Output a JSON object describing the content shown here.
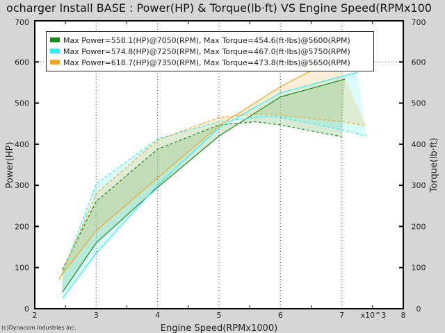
{
  "chart_data": {
    "type": "line",
    "title": "ocharger Install BASE : Power(HP) & Torque(lb·ft) VS Engine Speed(RPMx100",
    "xlabel": "Engine Speed(RPMx1000)",
    "x_multiplier": "x10^3",
    "ylabel": "Power(HP)",
    "y2label": "Torque(lb·ft)",
    "xlim": [
      2,
      8
    ],
    "ylim": [
      0,
      700
    ],
    "y2lim": [
      0,
      700
    ],
    "xticks": [
      "2",
      "3",
      "4",
      "5",
      "6",
      "7",
      "8"
    ],
    "yticks": [
      "0",
      "100",
      "200",
      "300",
      "400",
      "500",
      "600",
      "700"
    ],
    "grid": true,
    "legend_position": "top-left",
    "series": [
      {
        "name": "Max Power=558.1(HP)@7050(RPM), Max Torque=454.6(ft·lbs)@5600(RPM)",
        "color": "#1a8a1a",
        "power": {
          "x": [
            2.45,
            3,
            4,
            5,
            6,
            7.05
          ],
          "y": [
            40,
            160,
            295,
            420,
            515,
            558.1
          ]
        },
        "torque": {
          "x": [
            2.45,
            3,
            4,
            5,
            5.6,
            6,
            7
          ],
          "y": [
            95,
            261,
            388,
            447,
            454.6,
            447,
            418
          ]
        }
      },
      {
        "name": "Max Power=574.8(HP)@7250(RPM), Max Torque=467.0(ft·lbs)@5750(RPM)",
        "color": "#33eeee",
        "power": {
          "x": [
            2.45,
            3,
            4,
            5,
            6,
            7,
            7.25
          ],
          "y": [
            25,
            135,
            300,
            440,
            525,
            565,
            574.8
          ]
        },
        "torque": {
          "x": [
            2.45,
            3,
            4,
            5,
            5.75,
            6,
            7,
            7.4
          ],
          "y": [
            85,
            304,
            413,
            455,
            467,
            465,
            435,
            420
          ]
        }
      },
      {
        "name": "Max Power=618.7(HP)@7350(RPM), Max Torque=473.8(ft·lbs)@5650(RPM)",
        "color": "#f5a623",
        "power": {
          "x": [
            2.4,
            3,
            4,
            5,
            6,
            6.9
          ],
          "y": [
            75,
            190,
            318,
            445,
            540,
            610
          ]
        },
        "torque": {
          "x": [
            2.4,
            3,
            4,
            5,
            5.65,
            6,
            7,
            7.4
          ],
          "y": [
            70,
            280,
            410,
            465,
            473.8,
            470,
            455,
            445
          ]
        }
      }
    ]
  },
  "footer": "(c)Dynocom Industries Inc."
}
